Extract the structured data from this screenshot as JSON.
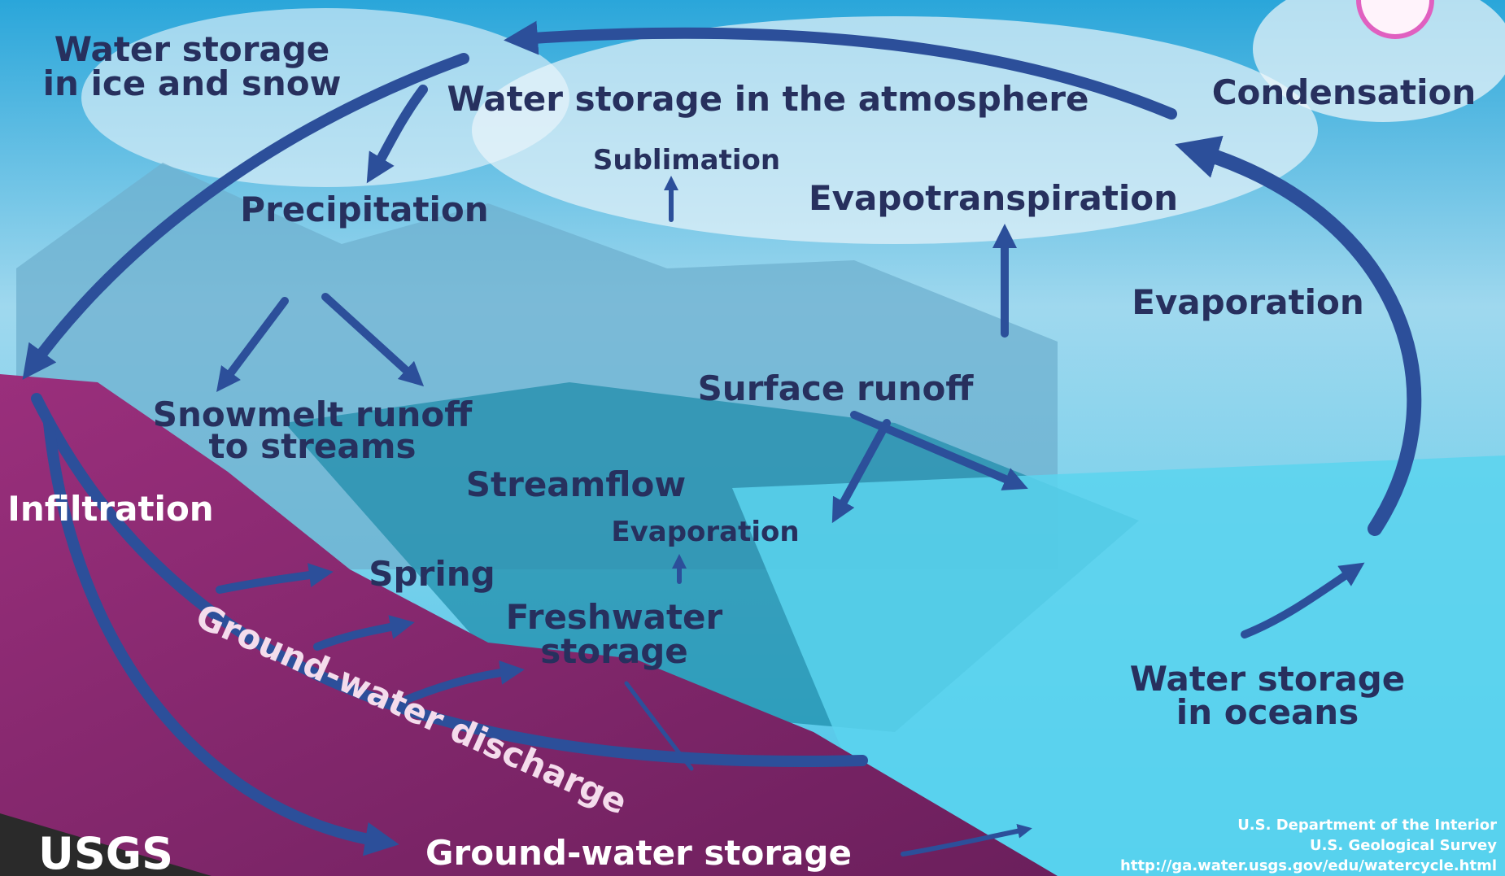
{
  "labels": {
    "ice_snow": [
      "Water storage",
      "in ice and snow"
    ],
    "atmosphere": "Water storage in the atmosphere",
    "condensation": "Condensation",
    "sublimation": "Sublimation",
    "precipitation": "Precipitation",
    "evapotranspiration": "Evapotranspiration",
    "evaporation_ocean": "Evaporation",
    "surface_runoff": "Surface runoff",
    "snowmelt": [
      "Snowmelt runoff",
      "to streams"
    ],
    "streamflow": "Streamflow",
    "infiltration": "Infiltration",
    "evaporation_fresh": "Evaporation",
    "spring": "Spring",
    "freshwater": [
      "Freshwater",
      "storage"
    ],
    "gw_discharge": "Ground-water discharge",
    "oceans": [
      "Water storage",
      "in oceans"
    ],
    "gw_storage": "Ground-water storage",
    "logo": "USGS",
    "credits": [
      "U.S. Department of the Interior",
      "U.S. Geological Survey",
      "http://ga.water.usgs.gov/edu/watercycle.html"
    ]
  }
}
